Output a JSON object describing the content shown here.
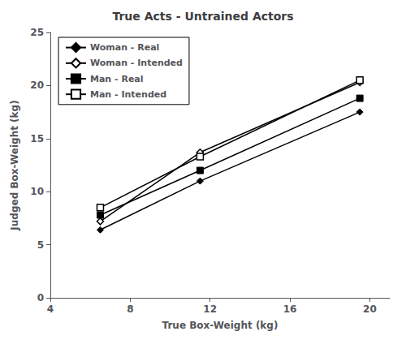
{
  "chart_data": {
    "type": "line",
    "title": "True Acts - Untrained Actors",
    "xlabel": "True Box-Weight (kg)",
    "ylabel": "Judged Box-Weight (kg)",
    "x": [
      6.5,
      11.5,
      19.5
    ],
    "series": [
      {
        "name": "Woman - Real",
        "color": "#000000",
        "marker": "diamond",
        "values": [
          6.4,
          11.0,
          17.5
        ]
      },
      {
        "name": "Woman - Intended",
        "color": "#000000",
        "marker": "open-diamond",
        "values": [
          7.2,
          13.7,
          20.3
        ]
      },
      {
        "name": "Man - Real",
        "color": "#000000",
        "marker": "square",
        "values": [
          7.8,
          12.0,
          18.8
        ]
      },
      {
        "name": "Man - Intended",
        "color": "#000000",
        "marker": "open-square",
        "values": [
          8.5,
          13.3,
          20.5
        ]
      }
    ],
    "xlim": [
      4,
      21
    ],
    "ylim": [
      0,
      25
    ],
    "xticks": [
      4,
      8,
      12,
      16,
      20
    ],
    "yticks": [
      0,
      5,
      10,
      15,
      20,
      25
    ],
    "grid": false,
    "legend": "upper left"
  }
}
